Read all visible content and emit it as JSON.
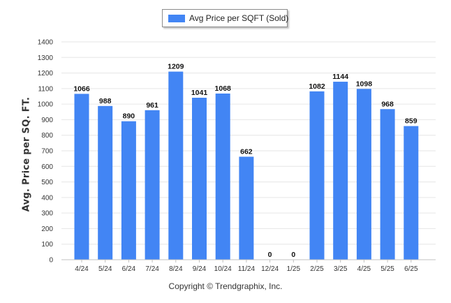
{
  "legend": {
    "label": "Avg Price per SQFT (Sold)"
  },
  "footer": {
    "copyright": "Copyright © Trendgraphix, Inc."
  },
  "colors": {
    "bar": "#4285f4",
    "grid": "#e6e6e6",
    "axis": "#c0c0c0",
    "text": "#333333"
  },
  "chart_data": {
    "type": "bar",
    "title": "",
    "xlabel": "",
    "ylabel": "Avg. Price per SQ. FT.",
    "categories": [
      "4/24",
      "5/24",
      "6/24",
      "7/24",
      "8/24",
      "9/24",
      "10/24",
      "11/24",
      "12/24",
      "1/25",
      "2/25",
      "3/25",
      "4/25",
      "5/25",
      "6/25"
    ],
    "series": [
      {
        "name": "Avg Price per SQFT (Sold)",
        "values": [
          1066,
          988,
          890,
          961,
          1209,
          1041,
          1068,
          662,
          0,
          0,
          1082,
          1144,
          1098,
          968,
          859
        ]
      }
    ],
    "data_labels": [
      "1066",
      "988",
      "890",
      "961",
      "1209",
      "1041",
      "1068",
      "662",
      "0",
      "0",
      "1082",
      "1144",
      "1098",
      "968",
      "859"
    ],
    "ylim": [
      0,
      1400
    ],
    "yticks": [
      0,
      100,
      200,
      300,
      400,
      500,
      600,
      700,
      800,
      900,
      1000,
      1100,
      1200,
      1300,
      1400
    ],
    "grid": true,
    "legend_position": "top-center"
  }
}
